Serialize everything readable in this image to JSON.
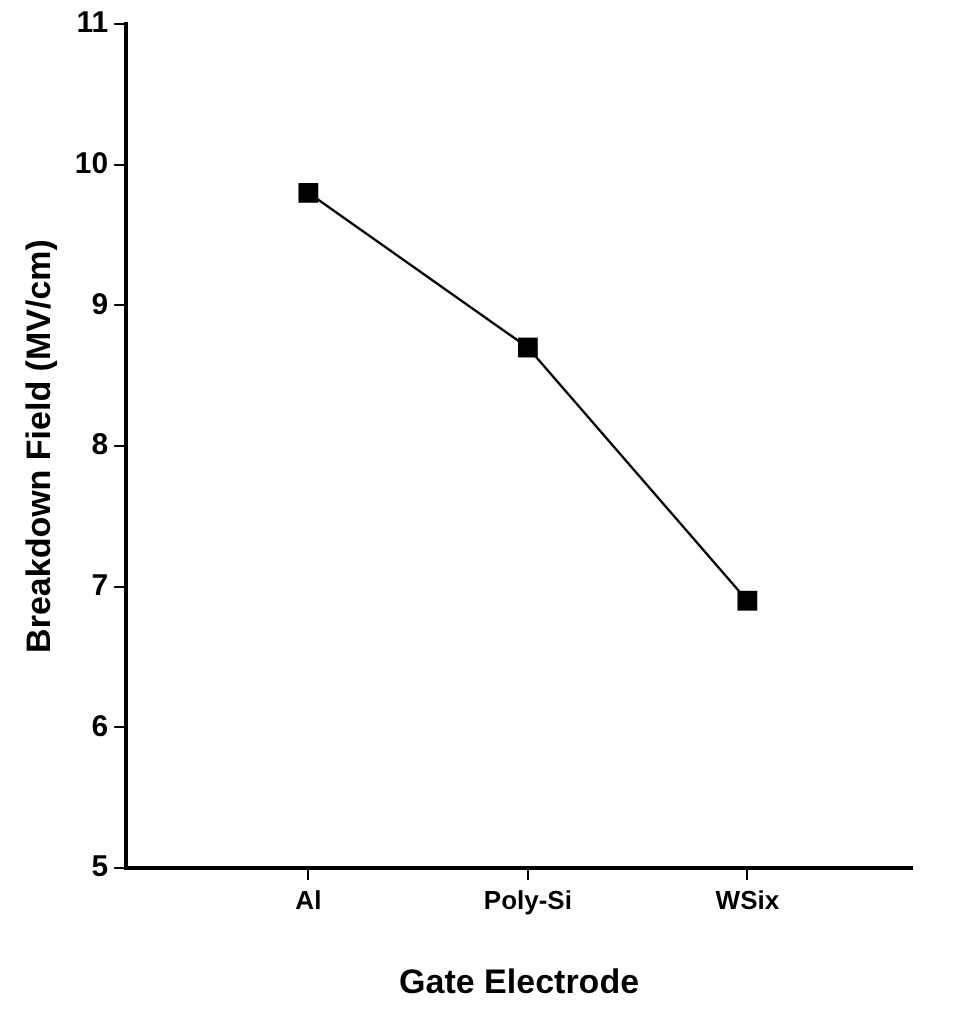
{
  "chart_data": {
    "type": "line",
    "xlabel": "Gate Electrode",
    "ylabel": "Breakdown Field (MV/cm)",
    "categories": [
      "Al",
      "Poly-Si",
      "WSix"
    ],
    "series": [
      {
        "color": "#000000",
        "values": [
          9.8,
          8.7,
          6.9
        ]
      }
    ],
    "ylim": [
      5,
      11
    ],
    "yticks": [
      5,
      6,
      7,
      8,
      9,
      10,
      11
    ],
    "grid": false,
    "legend": false,
    "marker": "square",
    "line_style": "solid"
  }
}
